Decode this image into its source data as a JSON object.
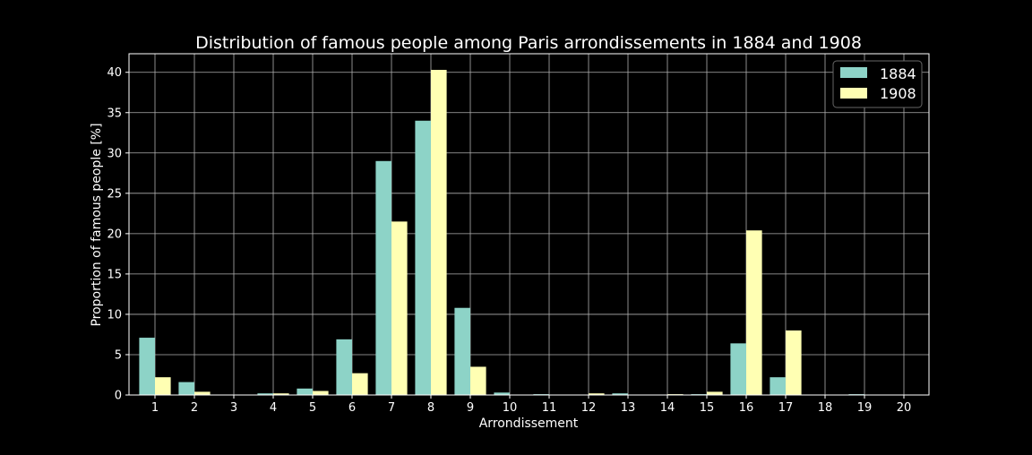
{
  "chart_data": {
    "type": "bar",
    "title": "Distribution of famous people among Paris arrondissements in 1884 and 1908",
    "xlabel": "Arrondissement",
    "ylabel": "Proportion of famous people [%]",
    "categories": [
      "1",
      "2",
      "3",
      "4",
      "5",
      "6",
      "7",
      "8",
      "9",
      "10",
      "11",
      "12",
      "13",
      "14",
      "15",
      "16",
      "17",
      "18",
      "19",
      "20"
    ],
    "series": [
      {
        "name": "1884",
        "color": "#8dd3c7",
        "values": [
          7.1,
          1.6,
          0.0,
          0.2,
          0.8,
          6.9,
          29.0,
          34.0,
          10.8,
          0.3,
          0.1,
          0.0,
          0.2,
          0.0,
          0.1,
          6.4,
          2.2,
          0.0,
          0.1,
          0.0
        ]
      },
      {
        "name": "1908",
        "color": "#ffffb3",
        "values": [
          2.2,
          0.4,
          0.0,
          0.2,
          0.5,
          2.7,
          21.5,
          40.3,
          3.5,
          0.0,
          0.0,
          0.2,
          0.0,
          0.1,
          0.4,
          20.4,
          8.0,
          0.0,
          0.0,
          0.0
        ]
      }
    ],
    "ylim": [
      0,
      42.3
    ],
    "yticks": [
      "0",
      "5",
      "10",
      "15",
      "20",
      "25",
      "30",
      "35",
      "40"
    ],
    "grid": true,
    "legend_position": "top-right",
    "background": "#000000",
    "grid_color": "#b0b0b0"
  }
}
